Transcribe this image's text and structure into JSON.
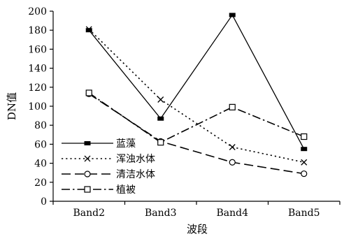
{
  "chart_data": {
    "type": "line",
    "categories": [
      "Band2",
      "Band3",
      "Band4",
      "Band5"
    ],
    "xlabel": "波段",
    "ylabel": "DN值",
    "ylim": [
      0,
      200
    ],
    "yticks": [
      0,
      20,
      40,
      60,
      80,
      100,
      120,
      140,
      160,
      180,
      200
    ],
    "grid": false,
    "legend_position": "left",
    "series": [
      {
        "name": "蓝藻",
        "values": [
          180,
          87,
          196,
          55
        ],
        "marker": "filled-square",
        "dash": "solid",
        "color": "#000000"
      },
      {
        "name": "浑浊水体",
        "values": [
          181,
          107,
          57,
          41
        ],
        "marker": "x",
        "dash": "dotted",
        "color": "#000000"
      },
      {
        "name": "清洁水体",
        "values": [
          113,
          63,
          41,
          29
        ],
        "marker": "circle",
        "dash": "long-dash",
        "color": "#000000"
      },
      {
        "name": "植被",
        "values": [
          114,
          62,
          99,
          68
        ],
        "marker": "open-square",
        "dash": "dash-dot",
        "color": "#000000"
      }
    ]
  }
}
